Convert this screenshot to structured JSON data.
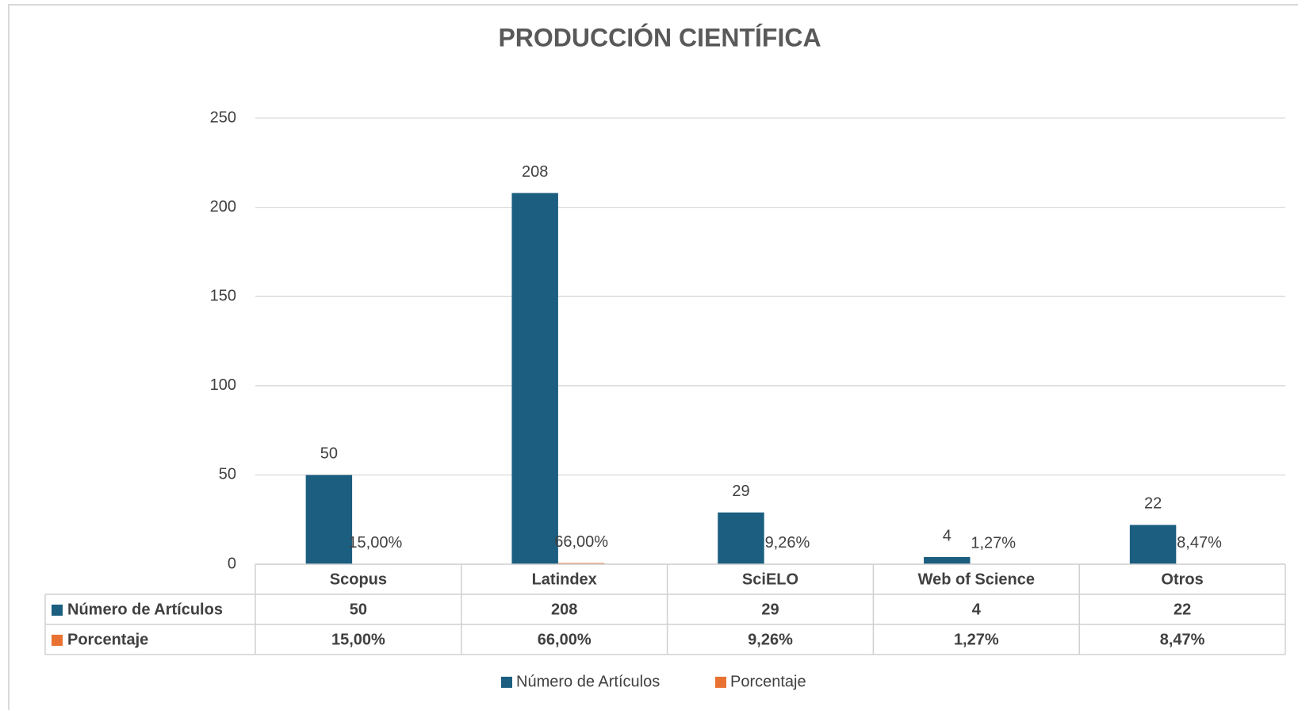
{
  "chart_data": {
    "type": "bar",
    "title": "PRODUCCIÓN CIENTÍFICA",
    "categories": [
      "Scopus",
      "Latindex",
      "SciELO",
      "Web of Science",
      "Otros"
    ],
    "series": [
      {
        "name": "Número de Artículos",
        "color": "#1b5e80",
        "values": [
          50,
          208,
          29,
          4,
          22
        ]
      },
      {
        "name": "Porcentaje",
        "color": "#e97132",
        "values": [
          0.15,
          0.66,
          0.0926,
          0.0127,
          0.0847
        ],
        "value_labels": [
          "15,00%",
          "66,00%",
          "9,26%",
          "1,27%",
          "8,47%"
        ]
      }
    ],
    "ylim": [
      0,
      250
    ],
    "yticks": [
      0,
      50,
      100,
      150,
      200,
      250
    ],
    "grid": true,
    "data_table": true,
    "legend": "bottom"
  }
}
